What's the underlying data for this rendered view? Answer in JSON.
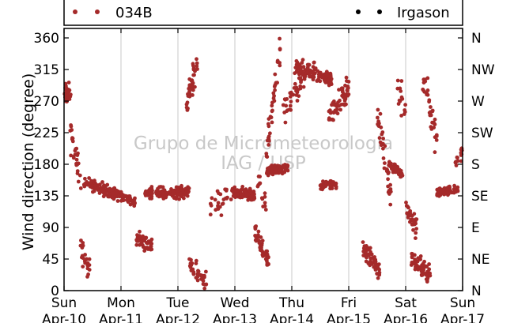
{
  "chart_data": {
    "type": "scatter",
    "ylabel": "Wind direction (degree)",
    "ylim": [
      0,
      360
    ],
    "yticks": [
      0,
      45,
      90,
      135,
      180,
      225,
      270,
      315,
      360
    ],
    "right_ticks": [
      "N",
      "NE",
      "E",
      "SE",
      "S",
      "SW",
      "W",
      "NW",
      "N"
    ],
    "x_tick_days": [
      "Sun",
      "Mon",
      "Tue",
      "Wed",
      "Thu",
      "Fri",
      "Sat",
      "Sun"
    ],
    "x_tick_dates": [
      "Apr-10",
      "Apr-11",
      "Apr-12",
      "Apr-13",
      "Apr-14",
      "Apr-15",
      "Apr-16",
      "Apr-17"
    ],
    "xlim_days": [
      0,
      7
    ],
    "grid": "vertical",
    "legend_position": "top",
    "watermark": [
      "Grupo de Micrometeorologia",
      "IAG / USP"
    ],
    "series": [
      {
        "name": "034B",
        "color": "#a52a2a",
        "segments": [
          {
            "x": [
              0.0,
              0.12
            ],
            "y": [
              280,
              280
            ],
            "spread": 22,
            "n": 30
          },
          {
            "x": [
              0.1,
              0.3
            ],
            "y": [
              225,
              160
            ],
            "spread": 35,
            "n": 30
          },
          {
            "x": [
              0.28,
              0.45
            ],
            "y": [
              60,
              30
            ],
            "spread": 25,
            "n": 22
          },
          {
            "x": [
              0.35,
              1.0
            ],
            "y": [
              155,
              135
            ],
            "spread": 12,
            "n": 120
          },
          {
            "x": [
              1.0,
              1.25
            ],
            "y": [
              135,
              125
            ],
            "spread": 10,
            "n": 50
          },
          {
            "x": [
              1.25,
              1.55
            ],
            "y": [
              75,
              65
            ],
            "spread": 15,
            "n": 45
          },
          {
            "x": [
              1.4,
              2.2
            ],
            "y": [
              140,
              140
            ],
            "spread": 12,
            "n": 130
          },
          {
            "x": [
              2.15,
              2.35
            ],
            "y": [
              260,
              330
            ],
            "spread": 30,
            "n": 40
          },
          {
            "x": [
              2.18,
              2.5
            ],
            "y": [
              40,
              15
            ],
            "spread": 20,
            "n": 40
          },
          {
            "x": [
              2.55,
              2.95
            ],
            "y": [
              120,
              130
            ],
            "spread": 25,
            "n": 25
          },
          {
            "x": [
              2.95,
              3.35
            ],
            "y": [
              140,
              135
            ],
            "spread": 12,
            "n": 100
          },
          {
            "x": [
              3.35,
              3.6
            ],
            "y": [
              80,
              40
            ],
            "spread": 20,
            "n": 50
          },
          {
            "x": [
              3.4,
              3.55
            ],
            "y": [
              150,
              120
            ],
            "spread": 30,
            "n": 15
          },
          {
            "x": [
              3.55,
              3.8
            ],
            "y": [
              200,
              340
            ],
            "spread": 40,
            "n": 40
          },
          {
            "x": [
              3.55,
              3.95
            ],
            "y": [
              170,
              175
            ],
            "spread": 10,
            "n": 80
          },
          {
            "x": [
              3.85,
              4.25
            ],
            "y": [
              250,
              310
            ],
            "spread": 30,
            "n": 40
          },
          {
            "x": [
              4.05,
              4.7
            ],
            "y": [
              320,
              300
            ],
            "spread": 18,
            "n": 110
          },
          {
            "x": [
              4.5,
              4.8
            ],
            "y": [
              150,
              150
            ],
            "spread": 8,
            "n": 45
          },
          {
            "x": [
              4.65,
              5.0
            ],
            "y": [
              250,
              290
            ],
            "spread": 30,
            "n": 60
          },
          {
            "x": [
              5.25,
              5.55
            ],
            "y": [
              60,
              30
            ],
            "spread": 22,
            "n": 60
          },
          {
            "x": [
              5.5,
              5.75
            ],
            "y": [
              250,
              130
            ],
            "spread": 40,
            "n": 35
          },
          {
            "x": [
              5.7,
              5.95
            ],
            "y": [
              180,
              165
            ],
            "spread": 10,
            "n": 50
          },
          {
            "x": [
              5.85,
              6.0
            ],
            "y": [
              290,
              250
            ],
            "spread": 40,
            "n": 15
          },
          {
            "x": [
              6.0,
              6.2
            ],
            "y": [
              120,
              90
            ],
            "spread": 25,
            "n": 35
          },
          {
            "x": [
              6.1,
              6.45
            ],
            "y": [
              45,
              20
            ],
            "spread": 20,
            "n": 60
          },
          {
            "x": [
              6.3,
              6.55
            ],
            "y": [
              300,
              220
            ],
            "spread": 40,
            "n": 35
          },
          {
            "x": [
              6.55,
              6.92
            ],
            "y": [
              140,
              145
            ],
            "spread": 10,
            "n": 60
          },
          {
            "x": [
              6.85,
              7.0
            ],
            "y": [
              170,
              200
            ],
            "spread": 25,
            "n": 15
          }
        ]
      },
      {
        "name": "Irgason",
        "color": "#000000",
        "segments": []
      }
    ]
  }
}
